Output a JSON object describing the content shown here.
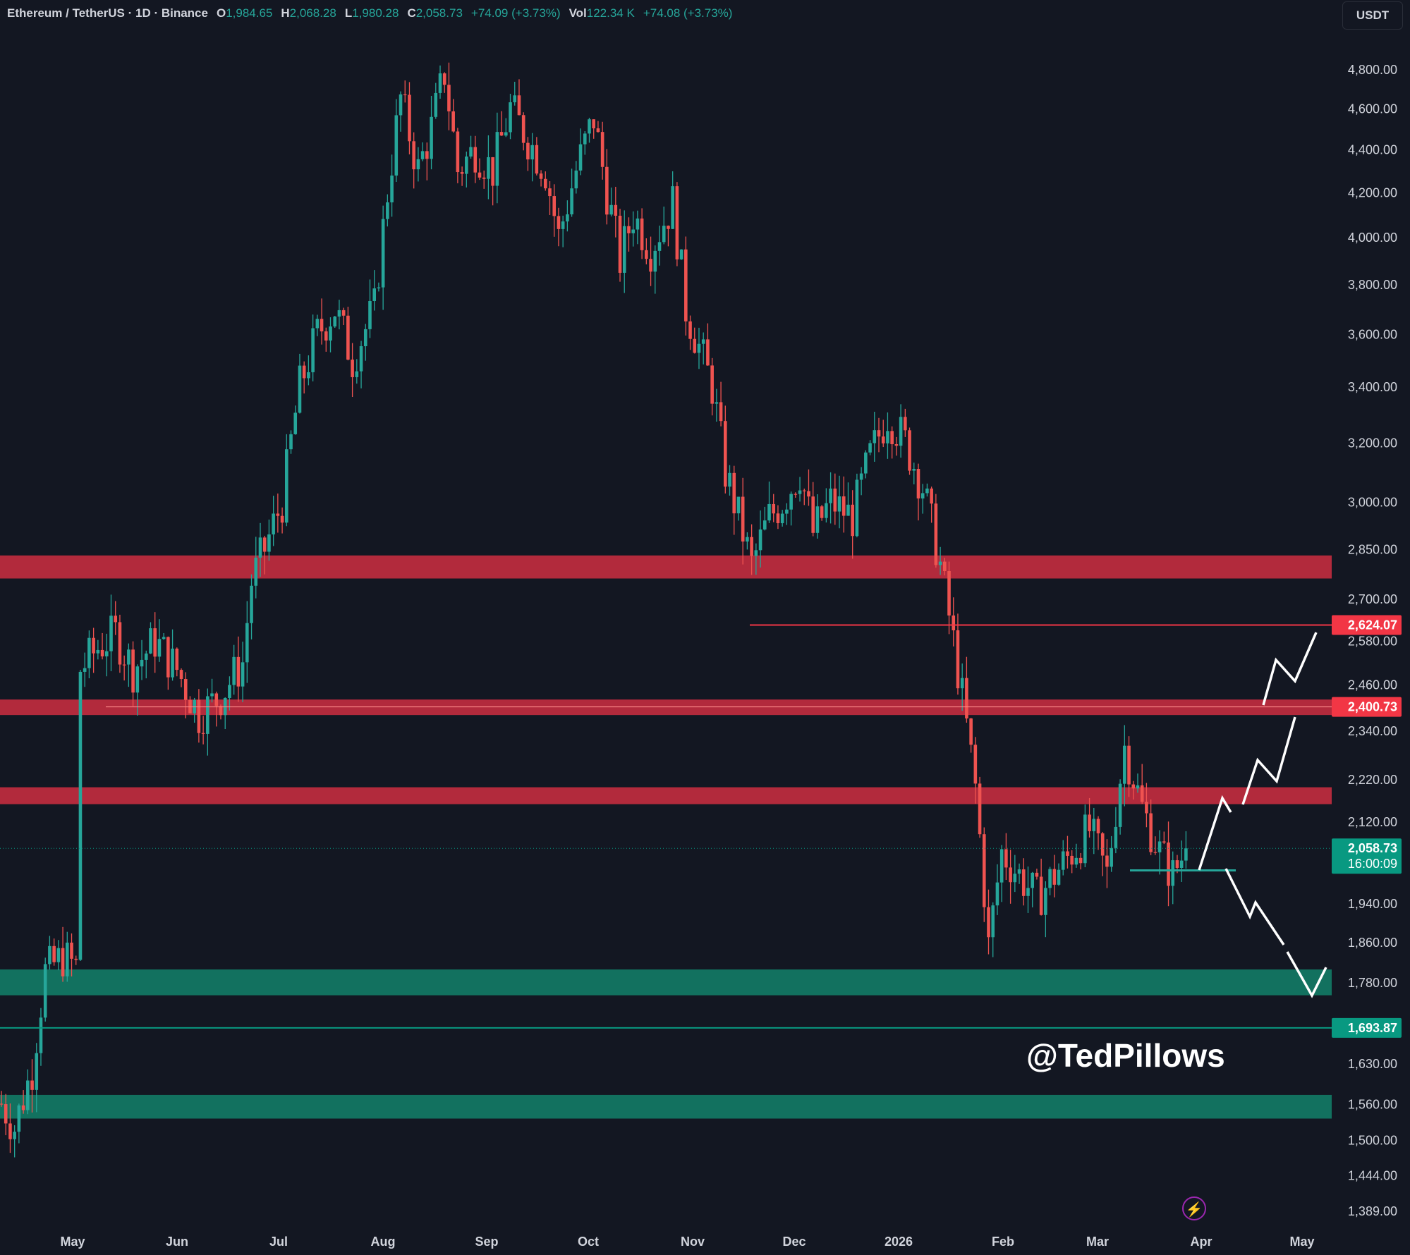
{
  "header": {
    "symbol": "Ethereum / TetherUS · 1D · Binance",
    "o_label": "O",
    "o_value": "1,984.65",
    "h_label": "H",
    "h_value": "2,068.28",
    "l_label": "L",
    "l_value": "1,980.28",
    "c_label": "C",
    "c_value": "2,058.73",
    "change": "+74.09 (+3.73%)",
    "vol_label": "Vol",
    "vol_value": "122.34 K",
    "vol_change": "+74.08 (+3.73%)"
  },
  "currency_button": "USDT",
  "watermark": "@TedPillows",
  "colors": {
    "background": "#131722",
    "up": "#26a69a",
    "down": "#ef5350",
    "resistance_zone": "#b22a3c",
    "support_zone": "#12715f",
    "text": "#d1d4dc"
  },
  "chart_data": {
    "type": "candlestick",
    "symbol": "ETH/USDT",
    "interval": "1D",
    "scale": "log",
    "yrange": [
      1350,
      5050
    ],
    "y_ticks": [
      "4,800.00",
      "4,600.00",
      "4,400.00",
      "4,200.00",
      "4,000.00",
      "3,800.00",
      "3,600.00",
      "3,400.00",
      "3,200.00",
      "3,000.00",
      "2,850.00",
      "2,700.00",
      "2,580.00",
      "2,460.00",
      "2,340.00",
      "2,220.00",
      "2,120.00",
      "1,940.00",
      "1,860.00",
      "1,780.00",
      "1,630.00",
      "1,560.00",
      "1,500.00",
      "1,444.00",
      "1,389.00"
    ],
    "x_labels": [
      "May",
      "Jun",
      "Jul",
      "Aug",
      "Sep",
      "Oct",
      "Nov",
      "Dec",
      "2026",
      "Feb",
      "Mar",
      "Apr",
      "May"
    ],
    "price_series": [
      [
        0,
        1560
      ],
      [
        3,
        1520
      ],
      [
        7,
        1620
      ],
      [
        10,
        1800
      ],
      [
        14,
        1830
      ],
      [
        17,
        1810
      ],
      [
        18,
        2500
      ],
      [
        22,
        2560
      ],
      [
        26,
        2600
      ],
      [
        30,
        2500
      ],
      [
        35,
        2580
      ],
      [
        40,
        2500
      ],
      [
        45,
        2380
      ],
      [
        50,
        2430
      ],
      [
        55,
        2520
      ],
      [
        57,
        2750
      ],
      [
        60,
        2850
      ],
      [
        64,
        3000
      ],
      [
        68,
        3400
      ],
      [
        72,
        3600
      ],
      [
        76,
        3700
      ],
      [
        80,
        3500
      ],
      [
        85,
        3700
      ],
      [
        88,
        4200
      ],
      [
        91,
        4650
      ],
      [
        95,
        4300
      ],
      [
        98,
        4500
      ],
      [
        101,
        4780
      ],
      [
        104,
        4300
      ],
      [
        108,
        4400
      ],
      [
        112,
        4300
      ],
      [
        116,
        4600
      ],
      [
        120,
        4450
      ],
      [
        124,
        4300
      ],
      [
        127,
        4000
      ],
      [
        131,
        4300
      ],
      [
        135,
        4550
      ],
      [
        138,
        4200
      ],
      [
        141,
        3900
      ],
      [
        144,
        4100
      ],
      [
        148,
        3950
      ],
      [
        153,
        4150
      ],
      [
        156,
        3700
      ],
      [
        159,
        3550
      ],
      [
        162,
        3400
      ],
      [
        165,
        3100
      ],
      [
        168,
        2950
      ],
      [
        171,
        2800
      ],
      [
        175,
        2950
      ],
      [
        178,
        3000
      ],
      [
        182,
        3100
      ],
      [
        185,
        2900
      ],
      [
        189,
        3000
      ],
      [
        194,
        2950
      ],
      [
        198,
        3150
      ],
      [
        202,
        3300
      ],
      [
        206,
        3200
      ],
      [
        210,
        3050
      ],
      [
        214,
        2800
      ],
      [
        218,
        2500
      ],
      [
        222,
        2200
      ],
      [
        225,
        1850
      ],
      [
        228,
        2050
      ],
      [
        232,
        2000
      ],
      [
        236,
        1950
      ],
      [
        240,
        2000
      ],
      [
        244,
        2050
      ],
      [
        248,
        2100
      ],
      [
        252,
        2000
      ],
      [
        256,
        2300
      ],
      [
        260,
        2150
      ],
      [
        264,
        2050
      ],
      [
        267,
        2000
      ],
      [
        270,
        2058.73
      ]
    ],
    "levels": [
      {
        "label": "2,624.07",
        "price": 2624.07,
        "color": "#f23645",
        "style": "line"
      },
      {
        "label": "2,400.73",
        "price": 2400.73,
        "color": "#f23645",
        "style": "zone"
      },
      {
        "label": "2,058.73",
        "price": 2058.73,
        "color": "#089981",
        "style": "last-price",
        "sublabel": "16:00:09"
      },
      {
        "label": "1,693.87",
        "price": 1693.87,
        "color": "#089981",
        "style": "line"
      }
    ],
    "resistance_zones": [
      [
        2760,
        2830
      ],
      [
        2380,
        2420
      ],
      [
        2160,
        2200
      ]
    ],
    "support_zones": [
      [
        1755,
        1805
      ],
      [
        1535,
        1575
      ]
    ]
  }
}
